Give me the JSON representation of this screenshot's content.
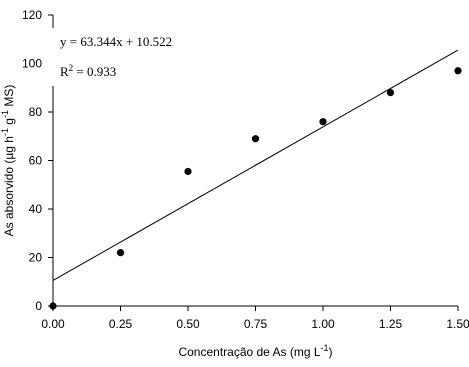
{
  "chart_data": {
    "type": "scatter",
    "x": [
      0,
      0.25,
      0.5,
      0.75,
      1.0,
      1.25,
      1.5
    ],
    "values": [
      0,
      22,
      55.5,
      69,
      76,
      88,
      97
    ],
    "color": "#000000",
    "trendline": {
      "slope": 63.344,
      "intercept": 10.522
    },
    "equation": "y = 63.344x + 10.522",
    "r2_label": [
      "R",
      "2",
      " = 0.933"
    ],
    "xlabel": [
      "Concentração de As (mg L",
      "-1",
      ")"
    ],
    "ylabel": [
      "As absorvido (µg h",
      "-1",
      " g",
      "-1",
      " MS)"
    ],
    "xlim": [
      0,
      1.5
    ],
    "xticks": [
      {
        "value": 0,
        "label": "0.00"
      },
      {
        "value": 0.25,
        "label": "0.25"
      },
      {
        "value": 0.5,
        "label": "0.50"
      },
      {
        "value": 0.75,
        "label": "0.75"
      },
      {
        "value": 1.0,
        "label": "1.00"
      },
      {
        "value": 1.25,
        "label": "1.25"
      },
      {
        "value": 1.5,
        "label": "1.50"
      }
    ],
    "ylim": [
      0,
      120
    ],
    "yticks": [
      0,
      20,
      40,
      60,
      80,
      100,
      120
    ]
  }
}
